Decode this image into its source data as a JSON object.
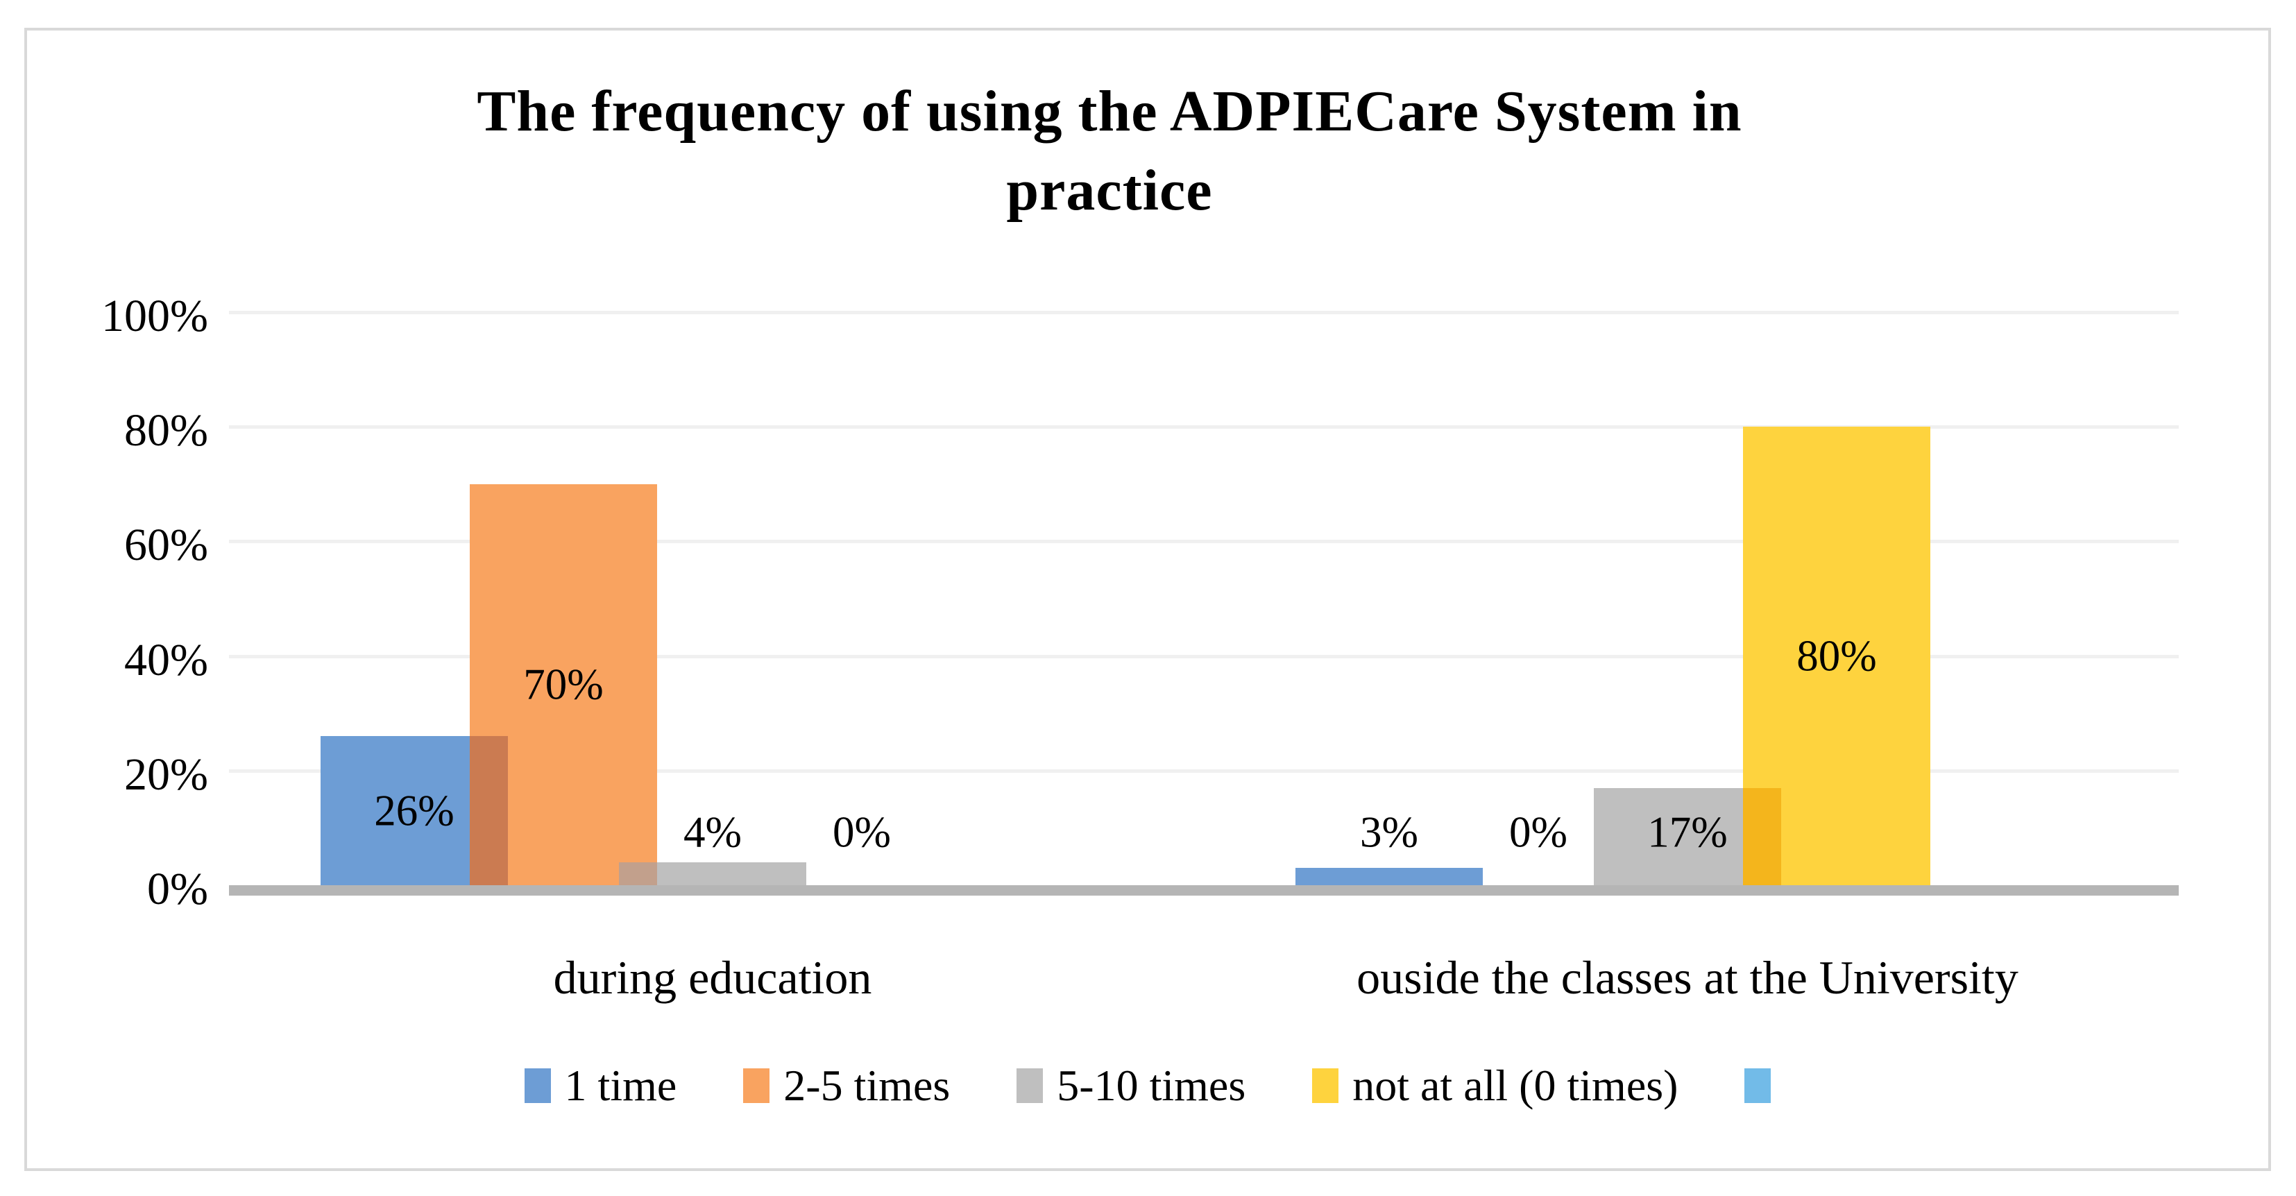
{
  "chart_data": {
    "type": "bar",
    "title": "The frequency of using the ADPIECare System in practice",
    "title_lines": [
      "The frequency of using the ADPIECare System in",
      "practice"
    ],
    "categories": [
      "during education",
      "ouside the classes at the University"
    ],
    "series": [
      {
        "name": "1 time",
        "values": [
          26,
          3
        ],
        "labels": [
          "26%",
          "3%"
        ],
        "color": "#6d9dd5"
      },
      {
        "name": "2-5 times",
        "values": [
          70,
          0
        ],
        "labels": [
          "70%",
          "0%"
        ],
        "color": "#f9a360"
      },
      {
        "name": "5-10 times",
        "values": [
          4,
          17
        ],
        "labels": [
          "4%",
          "17%"
        ],
        "color": "#bfbfbf"
      },
      {
        "name": "not at all (0 times)",
        "values": [
          0,
          80
        ],
        "labels": [
          "0%",
          "80%"
        ],
        "color": "#fed33e"
      },
      {
        "name": "",
        "values": [
          null,
          null
        ],
        "labels": [
          "",
          ""
        ],
        "color": "#72bbe8"
      }
    ],
    "y_axis": {
      "min": 0,
      "max": 100,
      "ticks": [
        "100%",
        "80%",
        "60%",
        "40%",
        "20%",
        "0%"
      ],
      "tick_values": [
        100,
        80,
        60,
        40,
        20,
        0
      ],
      "grid": true
    },
    "legend_position": "bottom",
    "overlap_colors": {
      "0-1": "#cb7b51",
      "1-2": "#c2a08c",
      "2-3": "#f4b51c"
    }
  },
  "colors": {
    "background": "#ffffff",
    "frame_border": "#d9d9d9",
    "gridline": "#f0f0f0",
    "axis_line": "#b5b5b5",
    "text": "#000000"
  }
}
